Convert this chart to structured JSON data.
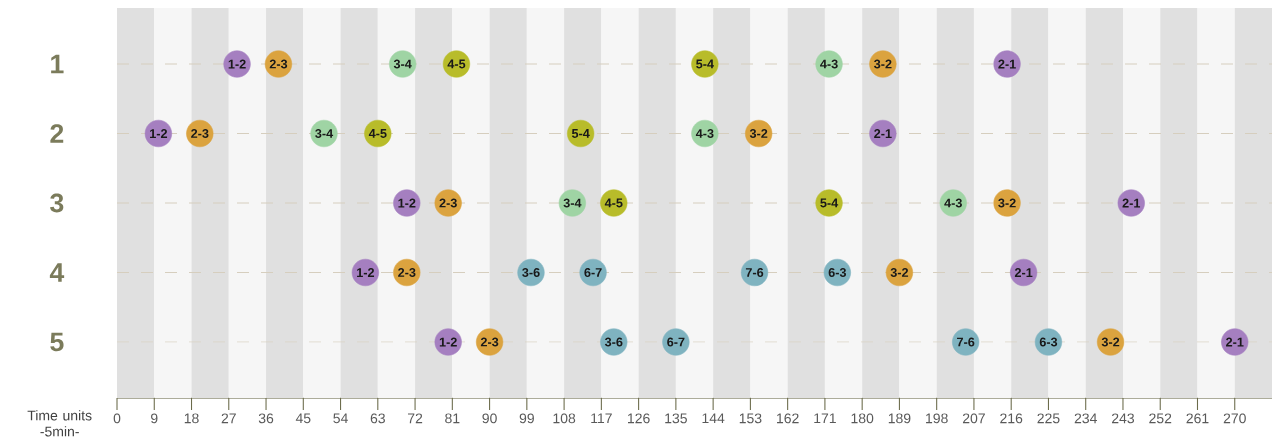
{
  "chart_data": {
    "type": "scatter",
    "xlabel": "Time units -5min-",
    "xlim": [
      0,
      279
    ],
    "xticks": [
      0,
      9,
      18,
      27,
      36,
      45,
      54,
      63,
      72,
      81,
      90,
      99,
      108,
      117,
      126,
      135,
      144,
      153,
      162,
      171,
      180,
      189,
      198,
      207,
      216,
      225,
      234,
      243,
      252,
      261,
      270
    ],
    "ylim": [
      5,
      1
    ],
    "yticks": [
      {
        "value": 1,
        "label": "1"
      },
      {
        "value": 2,
        "label": "2"
      },
      {
        "value": 3,
        "label": "3"
      },
      {
        "value": 4,
        "label": "4"
      },
      {
        "value": 5,
        "label": "5"
      }
    ],
    "grid": "y",
    "marker": "circle",
    "bands": [
      {
        "axis": "x",
        "from": 0,
        "to": 9,
        "color": "#e0e0e0"
      },
      {
        "axis": "x",
        "from": 9,
        "to": 18,
        "color": "#f6f6f6"
      },
      {
        "axis": "x",
        "from": 18,
        "to": 27,
        "color": "#e0e0e0"
      },
      {
        "axis": "x",
        "from": 27,
        "to": 36,
        "color": "#f6f6f6"
      },
      {
        "axis": "x",
        "from": 36,
        "to": 45,
        "color": "#e0e0e0"
      },
      {
        "axis": "x",
        "from": 45,
        "to": 54,
        "color": "#f6f6f6"
      },
      {
        "axis": "x",
        "from": 54,
        "to": 63,
        "color": "#e0e0e0"
      },
      {
        "axis": "x",
        "from": 63,
        "to": 72,
        "color": "#f6f6f6"
      },
      {
        "axis": "x",
        "from": 72,
        "to": 81,
        "color": "#e0e0e0"
      },
      {
        "axis": "x",
        "from": 81,
        "to": 90,
        "color": "#f6f6f6"
      },
      {
        "axis": "x",
        "from": 90,
        "to": 99,
        "color": "#e0e0e0"
      },
      {
        "axis": "x",
        "from": 99,
        "to": 108,
        "color": "#f6f6f6"
      },
      {
        "axis": "x",
        "from": 108,
        "to": 117,
        "color": "#e0e0e0"
      },
      {
        "axis": "x",
        "from": 117,
        "to": 126,
        "color": "#f6f6f6"
      },
      {
        "axis": "x",
        "from": 126,
        "to": 135,
        "color": "#e0e0e0"
      },
      {
        "axis": "x",
        "from": 135,
        "to": 144,
        "color": "#f6f6f6"
      },
      {
        "axis": "x",
        "from": 144,
        "to": 153,
        "color": "#e0e0e0"
      },
      {
        "axis": "x",
        "from": 153,
        "to": 162,
        "color": "#f6f6f6"
      },
      {
        "axis": "x",
        "from": 162,
        "to": 171,
        "color": "#e0e0e0"
      },
      {
        "axis": "x",
        "from": 171,
        "to": 180,
        "color": "#f6f6f6"
      },
      {
        "axis": "x",
        "from": 180,
        "to": 189,
        "color": "#e0e0e0"
      },
      {
        "axis": "x",
        "from": 189,
        "to": 198,
        "color": "#f6f6f6"
      },
      {
        "axis": "x",
        "from": 198,
        "to": 207,
        "color": "#e0e0e0"
      },
      {
        "axis": "x",
        "from": 207,
        "to": 216,
        "color": "#f6f6f6"
      },
      {
        "axis": "x",
        "from": 216,
        "to": 225,
        "color": "#e0e0e0"
      },
      {
        "axis": "x",
        "from": 225,
        "to": 234,
        "color": "#f6f6f6"
      },
      {
        "axis": "x",
        "from": 234,
        "to": 243,
        "color": "#e0e0e0"
      },
      {
        "axis": "x",
        "from": 243,
        "to": 252,
        "color": "#f6f6f6"
      },
      {
        "axis": "x",
        "from": 252,
        "to": 261,
        "color": "#e0e0e0"
      },
      {
        "axis": "x",
        "from": 261,
        "to": 270,
        "color": "#f6f6f6"
      },
      {
        "axis": "x",
        "from": 270,
        "to": 279,
        "color": "#e0e0e0"
      }
    ],
    "series": [
      {
        "x": [
          29,
          39,
          69,
          82,
          142,
          172,
          185,
          215
        ],
        "values": [
          1,
          1,
          1,
          1,
          1,
          1,
          1,
          1
        ],
        "colors": [
          "#a57fc0",
          "#dba33f",
          "#9fd4a4",
          "#b8bc2a",
          "#b8bc2a",
          "#9fd4a4",
          "#dba33f",
          "#a57fc0"
        ],
        "value_labels": [
          "1-2",
          "2-3",
          "3-4",
          "4-5",
          "5-4",
          "4-3",
          "3-2",
          "2-1"
        ]
      },
      {
        "x": [
          10,
          20,
          50,
          63,
          112,
          142,
          155,
          185
        ],
        "values": [
          2,
          2,
          2,
          2,
          2,
          2,
          2,
          2
        ],
        "colors": [
          "#a57fc0",
          "#dba33f",
          "#9fd4a4",
          "#b8bc2a",
          "#b8bc2a",
          "#9fd4a4",
          "#dba33f",
          "#a57fc0"
        ],
        "value_labels": [
          "1-2",
          "2-3",
          "3-4",
          "4-5",
          "5-4",
          "4-3",
          "3-2",
          "2-1"
        ]
      },
      {
        "x": [
          70,
          80,
          110,
          120,
          172,
          202,
          215,
          245
        ],
        "values": [
          3,
          3,
          3,
          3,
          3,
          3,
          3,
          3
        ],
        "colors": [
          "#a57fc0",
          "#dba33f",
          "#9fd4a4",
          "#b8bc2a",
          "#b8bc2a",
          "#9fd4a4",
          "#dba33f",
          "#a57fc0"
        ],
        "value_labels": [
          "1-2",
          "2-3",
          "3-4",
          "4-5",
          "5-4",
          "4-3",
          "3-2",
          "2-1"
        ]
      },
      {
        "x": [
          60,
          70,
          100,
          115,
          154,
          174,
          189,
          219
        ],
        "values": [
          4,
          4,
          4,
          4,
          4,
          4,
          4,
          4
        ],
        "colors": [
          "#a57fc0",
          "#dba33f",
          "#7fb3c0",
          "#7fb3c0",
          "#7fb3c0",
          "#7fb3c0",
          "#dba33f",
          "#a57fc0"
        ],
        "value_labels": [
          "1-2",
          "2-3",
          "3-6",
          "6-7",
          "7-6",
          "6-3",
          "3-2",
          "2-1"
        ]
      },
      {
        "x": [
          80,
          90,
          120,
          135,
          205,
          225,
          240,
          270
        ],
        "values": [
          5,
          5,
          5,
          5,
          5,
          5,
          5,
          5
        ],
        "colors": [
          "#a57fc0",
          "#dba33f",
          "#7fb3c0",
          "#7fb3c0",
          "#7fb3c0",
          "#7fb3c0",
          "#dba33f",
          "#a57fc0"
        ],
        "value_labels": [
          "1-2",
          "2-3",
          "3-6",
          "6-7",
          "7-6",
          "6-3",
          "3-2",
          "2-1"
        ]
      }
    ]
  }
}
